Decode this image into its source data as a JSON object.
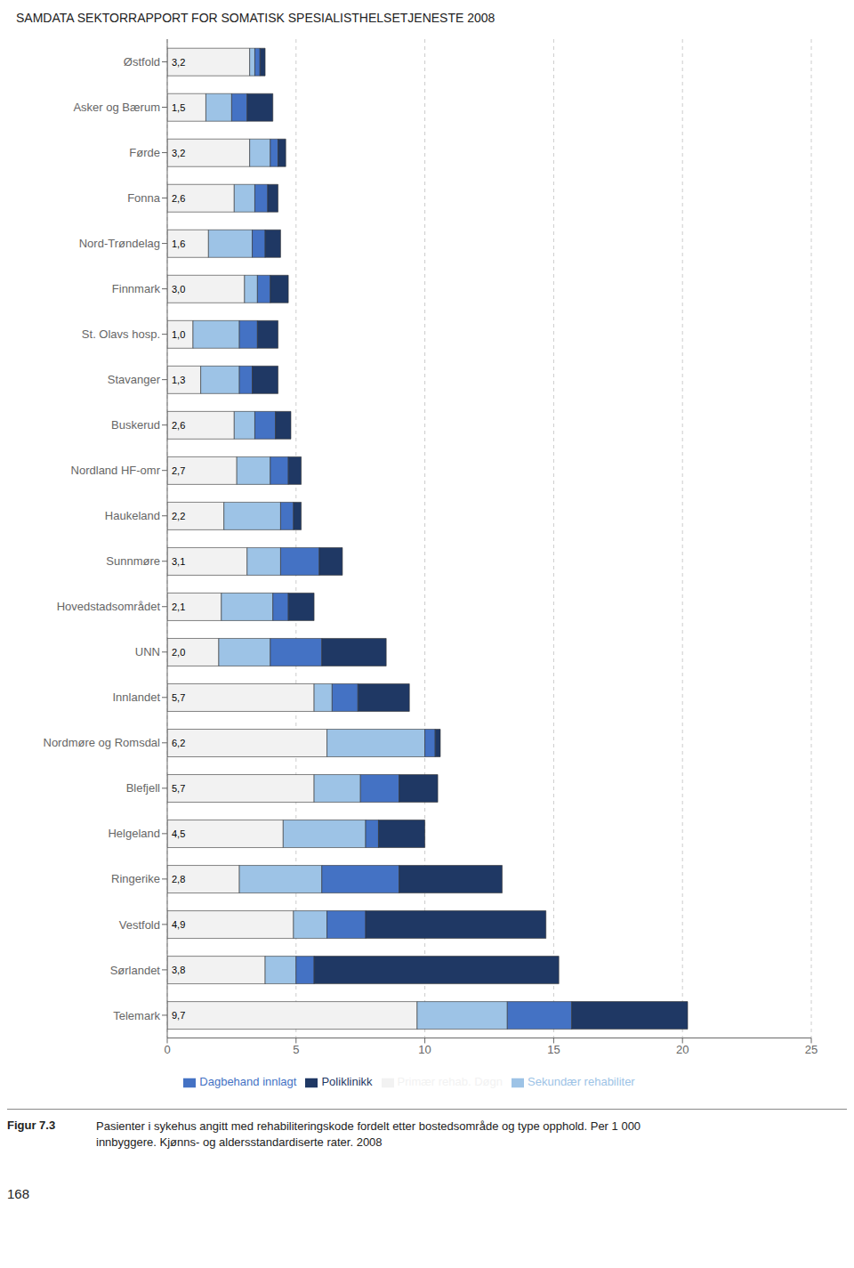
{
  "chart_data": {
    "type": "bar",
    "orientation": "horizontal",
    "stacked": true,
    "title": "SAMDATA SEKTORRAPPORT FOR SOMATISK SPESIALISTHELSETJENESTE 2008",
    "categories": [
      "Østfold",
      "Asker og Bærum",
      "Førde",
      "Fonna",
      "Nord-Trøndelag",
      "Finnmark",
      "St. Olavs hosp.",
      "Stavanger",
      "Buskerud",
      "Nordland HF-omr",
      "Haukeland",
      "Sunnmøre",
      "Hovedstadsområdet",
      "UNN",
      "Innlandet",
      "Nordmøre og Romsdal",
      "Blefjell",
      "Helgeland",
      "Ringerike",
      "Vestfold",
      "Sørlandet",
      "Telemark"
    ],
    "series": [
      {
        "name": "Primær rehab. Døgn",
        "color": "#f2f2f2",
        "values": [
          3.2,
          1.5,
          3.2,
          2.6,
          1.6,
          3.0,
          1.0,
          1.3,
          2.6,
          2.7,
          2.2,
          3.1,
          2.1,
          2.0,
          5.7,
          6.2,
          5.7,
          4.5,
          2.8,
          4.9,
          3.8,
          9.7
        ],
        "data_labels": true,
        "value_labels": [
          "3,2",
          "1,5",
          "3,2",
          "2,6",
          "1,6",
          "3,0",
          "1,0",
          "1,3",
          "2,6",
          "2,7",
          "2,2",
          "3,1",
          "2,1",
          "2,0",
          "5,7",
          "6,2",
          "5,7",
          "4,5",
          "2,8",
          "4,9",
          "3,8",
          "9,7"
        ]
      },
      {
        "name": "Sekundær rehabiliter",
        "color": "#9dc3e6",
        "values": [
          0.2,
          1.0,
          0.8,
          0.8,
          1.7,
          0.5,
          1.8,
          1.5,
          0.8,
          1.3,
          2.2,
          1.3,
          2.0,
          2.0,
          0.7,
          3.8,
          1.8,
          3.2,
          3.2,
          1.3,
          1.2,
          3.5
        ]
      },
      {
        "name": "Dagbehand innlagt",
        "color": "#4472c4",
        "values": [
          0.2,
          0.6,
          0.3,
          0.5,
          0.5,
          0.5,
          0.7,
          0.5,
          0.8,
          0.7,
          0.5,
          1.5,
          0.6,
          2.0,
          1.0,
          0.4,
          1.5,
          0.5,
          3.0,
          1.5,
          0.7,
          2.5
        ]
      },
      {
        "name": "Poliklinikk",
        "color": "#1f3864",
        "values": [
          0.2,
          1.0,
          0.3,
          0.4,
          0.6,
          0.7,
          0.8,
          1.0,
          0.6,
          0.5,
          0.3,
          0.9,
          1.0,
          2.5,
          2.0,
          0.2,
          1.5,
          1.8,
          4.0,
          7.0,
          9.5,
          4.5
        ]
      }
    ],
    "xlim": [
      0,
      25
    ],
    "xticks": [
      0,
      5,
      10,
      15,
      20,
      25
    ],
    "grid": true,
    "legend": "bottom",
    "annotations": [
      "Figur 7.3",
      "Pasienter i sykehus angitt med rehabiliteringskode fordelt etter bostedsområde og type opphold. Per 1 000\ninnbyggere. Kjønns- og aldersstandardiserte rater. 2008",
      "168"
    ]
  }
}
